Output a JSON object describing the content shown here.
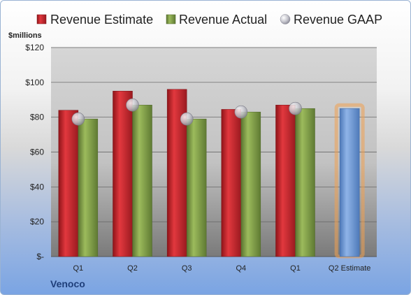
{
  "legend": [
    {
      "label": "Revenue Estimate",
      "color": "#c0262d",
      "marker": "square"
    },
    {
      "label": "Revenue Actual",
      "color": "#7e9b43",
      "marker": "square"
    },
    {
      "label": "Revenue GAAP",
      "color": "#b8b8c0",
      "marker": "circle"
    }
  ],
  "company": "Venoco",
  "chart_data": {
    "type": "bar",
    "unit_label": "$millions",
    "categories": [
      "Q1",
      "Q2",
      "Q3",
      "Q4",
      "Q1",
      "Q2 Estimate"
    ],
    "ylim": [
      0,
      120
    ],
    "yticks": [
      {
        "value": 0,
        "label": "$-"
      },
      {
        "value": 20,
        "label": "$20"
      },
      {
        "value": 40,
        "label": "$40"
      },
      {
        "value": 60,
        "label": "$60"
      },
      {
        "value": 80,
        "label": "$80"
      },
      {
        "value": 100,
        "label": "$100"
      },
      {
        "value": 120,
        "label": "$120"
      }
    ],
    "grid": true,
    "legend_position": "top",
    "series": [
      {
        "name": "Revenue Estimate",
        "type": "bar",
        "color": "#c0262d",
        "values": [
          84,
          95,
          96,
          84.5,
          87,
          null
        ]
      },
      {
        "name": "Revenue Actual",
        "type": "bar",
        "color": "#7e9b43",
        "values": [
          79,
          87,
          79,
          83,
          85,
          null
        ]
      },
      {
        "name": "Revenue GAAP",
        "type": "marker",
        "color": "#b8b8c0",
        "values": [
          79,
          87,
          79,
          83,
          85,
          null
        ]
      }
    ],
    "projection": {
      "category": "Q2 Estimate",
      "value": 85,
      "color": "#6f9ad6",
      "highlight": "#f0a050"
    }
  }
}
